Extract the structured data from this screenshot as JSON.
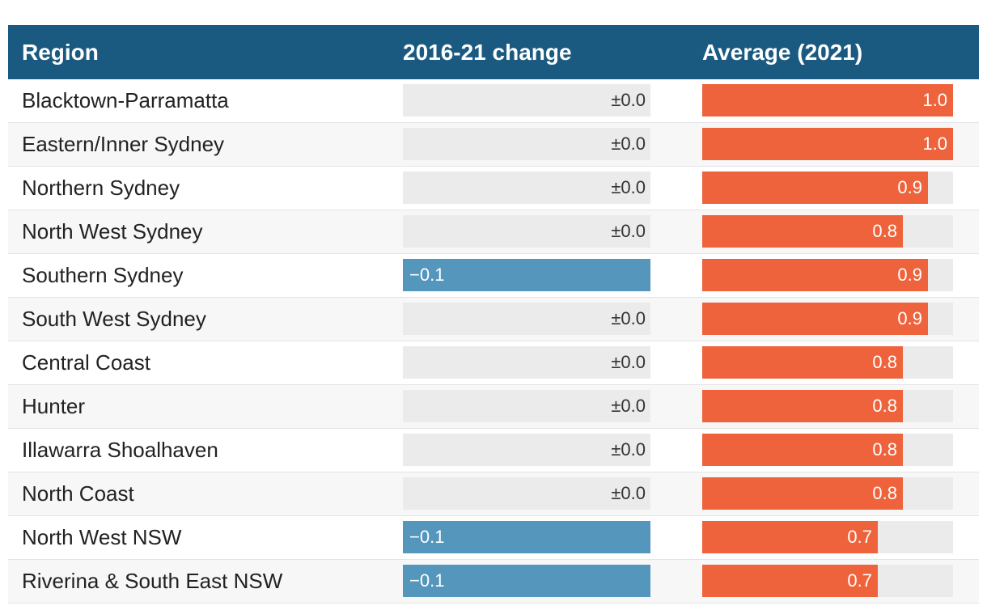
{
  "header": {
    "region": "Region",
    "change": "2016-21 change",
    "average": "Average (2021)"
  },
  "colors": {
    "header_bg": "#1b5a80",
    "negative": "#5596bd",
    "average": "#ee633c",
    "track": "#ebebeb"
  },
  "chart_data": {
    "type": "table",
    "columns": [
      "Region",
      "2016-21 change",
      "Average (2021)"
    ],
    "change_range": [
      -0.1,
      0.0
    ],
    "average_range": [
      0,
      1.0
    ],
    "rows": [
      {
        "region": "Blacktown-Parramatta",
        "change": 0.0,
        "change_label": "±0.0",
        "average": 1.0,
        "average_label": "1.0"
      },
      {
        "region": "Eastern/Inner Sydney",
        "change": 0.0,
        "change_label": "±0.0",
        "average": 1.0,
        "average_label": "1.0"
      },
      {
        "region": "Northern Sydney",
        "change": 0.0,
        "change_label": "±0.0",
        "average": 0.9,
        "average_label": "0.9"
      },
      {
        "region": "North West Sydney",
        "change": 0.0,
        "change_label": "±0.0",
        "average": 0.8,
        "average_label": "0.8"
      },
      {
        "region": "Southern Sydney",
        "change": -0.1,
        "change_label": "−0.1",
        "average": 0.9,
        "average_label": "0.9"
      },
      {
        "region": "South West Sydney",
        "change": 0.0,
        "change_label": "±0.0",
        "average": 0.9,
        "average_label": "0.9"
      },
      {
        "region": "Central Coast",
        "change": 0.0,
        "change_label": "±0.0",
        "average": 0.8,
        "average_label": "0.8"
      },
      {
        "region": "Hunter",
        "change": 0.0,
        "change_label": "±0.0",
        "average": 0.8,
        "average_label": "0.8"
      },
      {
        "region": "Illawarra Shoalhaven",
        "change": 0.0,
        "change_label": "±0.0",
        "average": 0.8,
        "average_label": "0.8"
      },
      {
        "region": "North Coast",
        "change": 0.0,
        "change_label": "±0.0",
        "average": 0.8,
        "average_label": "0.8"
      },
      {
        "region": "North West NSW",
        "change": -0.1,
        "change_label": "−0.1",
        "average": 0.7,
        "average_label": "0.7"
      },
      {
        "region": "Riverina & South East NSW",
        "change": -0.1,
        "change_label": "−0.1",
        "average": 0.7,
        "average_label": "0.7"
      }
    ]
  }
}
